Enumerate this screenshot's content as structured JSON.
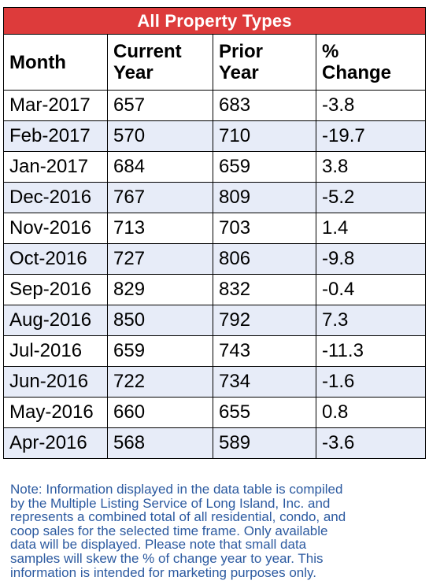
{
  "colors": {
    "title_bg": "#dd3b3b",
    "title_text": "#ffffff",
    "band_row_bg": "#e7ecf8",
    "row_bg": "#ffffff",
    "note_text": "#2c5aa0"
  },
  "table": {
    "title": "All Property Types",
    "columns": [
      [
        "Month"
      ],
      [
        "Current",
        "Year"
      ],
      [
        "Prior",
        "Year"
      ],
      [
        "%",
        "Change"
      ]
    ],
    "rows": [
      [
        "Mar-2017",
        "657",
        "683",
        "-3.8"
      ],
      [
        "Feb-2017",
        "570",
        "710",
        "-19.7"
      ],
      [
        "Jan-2017",
        "684",
        "659",
        "3.8"
      ],
      [
        "Dec-2016",
        "767",
        "809",
        "-5.2"
      ],
      [
        "Nov-2016",
        "713",
        "703",
        "1.4"
      ],
      [
        "Oct-2016",
        "727",
        "806",
        "-9.8"
      ],
      [
        "Sep-2016",
        "829",
        "832",
        "-0.4"
      ],
      [
        "Aug-2016",
        "850",
        "792",
        "7.3"
      ],
      [
        "Jul-2016",
        "659",
        "743",
        "-11.3"
      ],
      [
        "Jun-2016",
        "722",
        "734",
        "-1.6"
      ],
      [
        "May-2016",
        "660",
        "655",
        "0.8"
      ],
      [
        "Apr-2016",
        "568",
        "589",
        "-3.6"
      ]
    ]
  },
  "note": {
    "lines": [
      "Note: Information displayed in the data table is compiled",
      "by the Multiple  Listing Service of Long Island, Inc. and",
      "represents a combined total of all residential, condo, and",
      "coop sales for the selected time frame. Only available",
      "data will be displayed. Please note that small data",
      "samples will skew the % of change year to year. This",
      "information is intended for marketing purposes only."
    ]
  }
}
